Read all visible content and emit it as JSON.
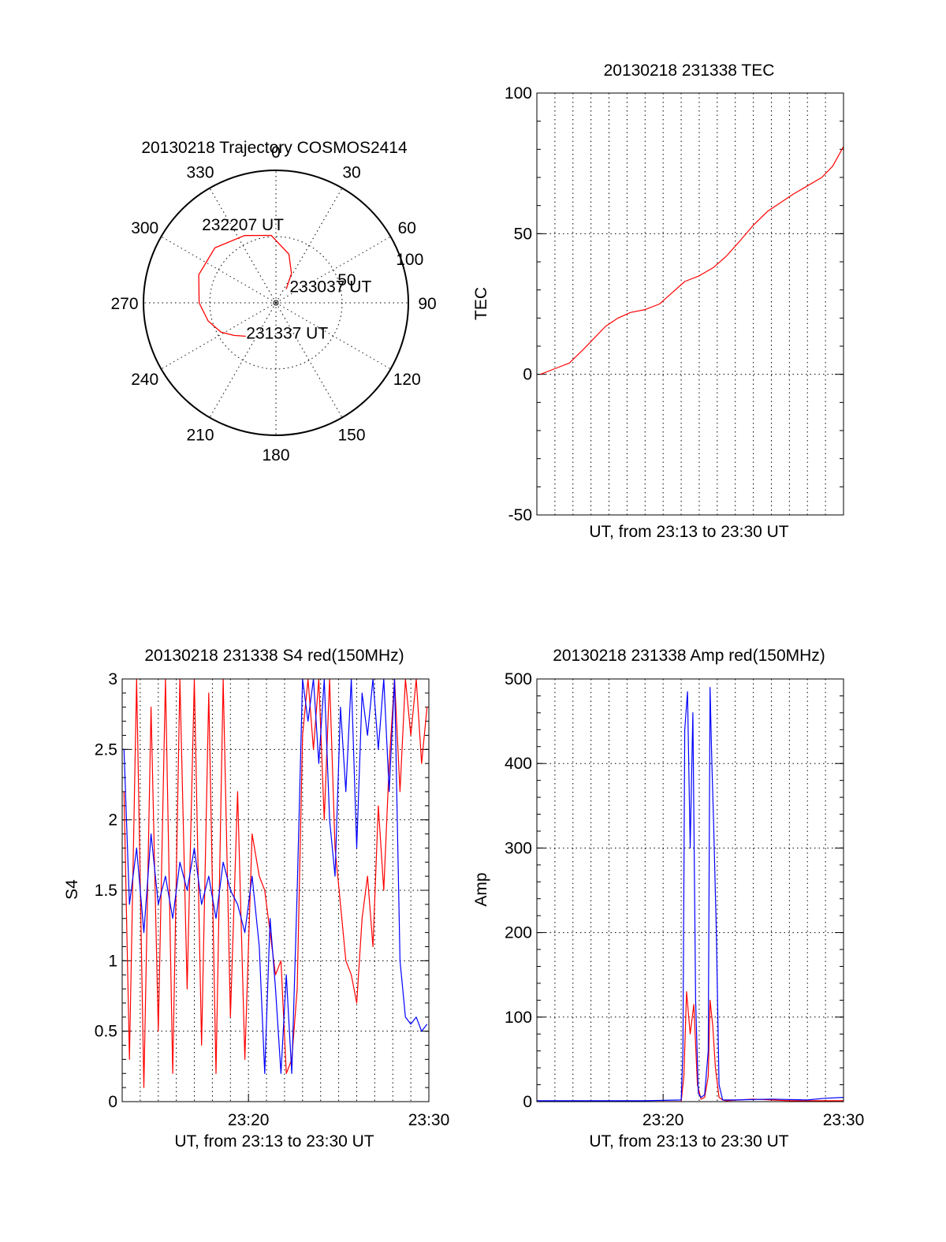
{
  "chart_data": [
    {
      "type": "polar-trajectory",
      "title": "20130218 Trajectory COSMOS2414",
      "azimuth_labels": [
        "0",
        "30",
        "60",
        "90",
        "120",
        "150",
        "180",
        "210",
        "240",
        "270",
        "300",
        "330"
      ],
      "elevation_ring_labels": [
        "50",
        "100"
      ],
      "elevation_ring_values": [
        50,
        100
      ],
      "trajectory": [
        {
          "az": 222,
          "el": 34
        },
        {
          "az": 232,
          "el": 40
        },
        {
          "az": 242,
          "el": 47
        },
        {
          "az": 255,
          "el": 53
        },
        {
          "az": 270,
          "el": 58
        },
        {
          "az": 290,
          "el": 62
        },
        {
          "az": 312,
          "el": 62
        },
        {
          "az": 335,
          "el": 56
        },
        {
          "az": 356,
          "el": 51
        },
        {
          "az": 15,
          "el": 38
        },
        {
          "az": 28,
          "el": 25
        },
        {
          "az": 37,
          "el": 13
        }
      ],
      "annotations": [
        {
          "text": "231337 UT",
          "az": 222,
          "el": 30
        },
        {
          "text": "232207 UT",
          "az": 318,
          "el": 80
        },
        {
          "text": "233037 UT",
          "az": 45,
          "el": 18
        }
      ],
      "line_color": "#ff0000"
    },
    {
      "type": "line",
      "title": "20130218 231338 TEC",
      "xlabel": "UT, from 23:13 to 23:30 UT",
      "ylabel": "TEC",
      "xlim": [
        0,
        17
      ],
      "ylim": [
        -50,
        100
      ],
      "yticks": [
        "-50",
        "0",
        "50",
        "100"
      ],
      "ytick_values": [
        -50,
        0,
        50,
        100
      ],
      "grid": true,
      "series": [
        {
          "color": "#ff0000",
          "x": [
            0.2,
            1.0,
            1.8,
            2.6,
            3.2,
            3.8,
            4.5,
            5.2,
            6.0,
            6.8,
            7.5,
            8.2,
            9.0,
            9.8,
            10.5,
            11.2,
            12.0,
            12.8,
            13.5,
            14.2,
            15.0,
            15.8,
            16.4,
            17.0
          ],
          "y": [
            0,
            2,
            4,
            9,
            13,
            17,
            20,
            22,
            23,
            25,
            29,
            33,
            35,
            38,
            42,
            47,
            53,
            58,
            61,
            64,
            67,
            70,
            74,
            81
          ]
        }
      ]
    },
    {
      "type": "line",
      "title": "20130218 231338 S4 red(150MHz)",
      "xlabel": "UT, from 23:13 to 23:30 UT",
      "ylabel": "S4",
      "xlim": [
        0,
        17
      ],
      "ylim": [
        0,
        3
      ],
      "yticks": [
        "0",
        "0.5",
        "1",
        "1.5",
        "2",
        "2.5",
        "3"
      ],
      "ytick_values": [
        0,
        0.5,
        1,
        1.5,
        2,
        2.5,
        3
      ],
      "xticks": [
        "23:20",
        "23:30"
      ],
      "xtick_values": [
        7,
        17
      ],
      "grid": true,
      "series": [
        {
          "color": "#ff0000",
          "x": [
            0.1,
            0.4,
            0.8,
            1.2,
            1.6,
            2.0,
            2.4,
            2.8,
            3.2,
            3.6,
            4.0,
            4.4,
            4.8,
            5.2,
            5.6,
            6.0,
            6.4,
            6.8,
            7.2,
            7.6,
            7.9,
            8.2,
            8.5,
            8.8,
            9.1,
            9.4,
            9.7,
            10.0,
            10.3,
            10.6,
            10.9,
            11.2,
            11.5,
            11.8,
            12.1,
            12.4,
            12.7,
            13.0,
            13.3,
            13.6,
            13.9,
            14.2,
            14.5,
            14.8,
            15.1,
            15.4,
            15.7,
            16.0,
            16.3,
            16.6,
            16.9
          ],
          "y": [
            2.2,
            0.3,
            3.0,
            0.1,
            2.8,
            0.5,
            3.0,
            0.2,
            3.0,
            0.8,
            3.0,
            0.4,
            2.9,
            0.2,
            3.0,
            0.6,
            2.2,
            0.3,
            1.9,
            1.6,
            1.5,
            1.2,
            0.9,
            1.0,
            0.2,
            0.3,
            0.8,
            2.6,
            3.0,
            2.5,
            3.0,
            2.0,
            3.0,
            1.8,
            1.4,
            1.0,
            0.9,
            0.7,
            1.3,
            1.6,
            1.1,
            2.1,
            1.5,
            2.4,
            3.0,
            2.2,
            3.0,
            2.6,
            3.0,
            2.4,
            2.8
          ]
        },
        {
          "color": "#0000ff",
          "x": [
            0.1,
            0.4,
            0.8,
            1.2,
            1.6,
            2.0,
            2.4,
            2.8,
            3.2,
            3.6,
            4.0,
            4.4,
            4.8,
            5.2,
            5.6,
            6.0,
            6.4,
            6.8,
            7.2,
            7.6,
            7.9,
            8.2,
            8.5,
            8.8,
            9.1,
            9.4,
            9.7,
            10.0,
            10.3,
            10.6,
            10.9,
            11.2,
            11.5,
            11.8,
            12.1,
            12.4,
            12.7,
            13.0,
            13.3,
            13.6,
            13.9,
            14.2,
            14.5,
            14.8,
            15.1,
            15.4,
            15.7,
            16.0,
            16.3,
            16.6,
            16.9
          ],
          "y": [
            2.5,
            1.4,
            1.8,
            1.2,
            1.9,
            1.4,
            1.6,
            1.3,
            1.7,
            1.5,
            1.8,
            1.4,
            1.6,
            1.3,
            1.7,
            1.5,
            1.4,
            1.2,
            1.6,
            1.1,
            0.2,
            1.3,
            0.8,
            0.2,
            0.9,
            0.2,
            1.5,
            3.0,
            2.7,
            3.0,
            2.4,
            3.0,
            2.0,
            1.6,
            2.8,
            2.2,
            3.0,
            1.8,
            2.9,
            2.6,
            3.0,
            2.5,
            3.0,
            2.2,
            3.0,
            1.0,
            0.6,
            0.55,
            0.6,
            0.5,
            0.55
          ]
        }
      ]
    },
    {
      "type": "line",
      "title": "20130218 231338 Amp red(150MHz)",
      "xlabel": "UT, from 23:13 to 23:30 UT",
      "ylabel": "Amp",
      "xlim": [
        0,
        17
      ],
      "ylim": [
        0,
        500
      ],
      "yticks": [
        "0",
        "100",
        "200",
        "300",
        "400",
        "500"
      ],
      "ytick_values": [
        0,
        100,
        200,
        300,
        400,
        500
      ],
      "xticks": [
        "23:20",
        "23:30"
      ],
      "xtick_values": [
        7,
        17
      ],
      "grid": true,
      "series": [
        {
          "color": "#ff0000",
          "x": [
            0,
            8.0,
            8.15,
            8.3,
            8.5,
            8.7,
            8.9,
            9.1,
            9.3,
            9.5,
            9.6,
            9.75,
            9.9,
            10.1,
            10.3,
            10.5,
            12.0,
            13.0,
            14.0,
            17.0
          ],
          "y": [
            0,
            0,
            30,
            130,
            80,
            115,
            20,
            3,
            5,
            30,
            120,
            90,
            40,
            5,
            2,
            1,
            3,
            2,
            1,
            1
          ]
        },
        {
          "color": "#0000ff",
          "x": [
            0,
            3.0,
            6.0,
            8.0,
            8.1,
            8.2,
            8.35,
            8.5,
            8.65,
            8.8,
            8.95,
            9.1,
            9.3,
            9.5,
            9.6,
            9.7,
            9.8,
            9.95,
            10.1,
            10.3,
            11.0,
            13.0,
            15.0,
            16.0,
            17.0
          ],
          "y": [
            1,
            1,
            1,
            2,
            60,
            440,
            485,
            300,
            460,
            120,
            10,
            5,
            8,
            60,
            490,
            400,
            330,
            200,
            20,
            2,
            2,
            3,
            2,
            4,
            5
          ]
        }
      ]
    }
  ]
}
